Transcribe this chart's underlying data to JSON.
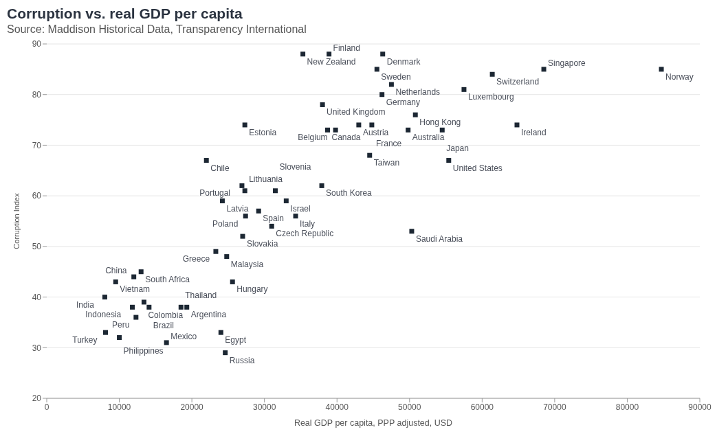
{
  "chart_data": {
    "type": "scatter",
    "title": "Corruption vs. real GDP per capita",
    "subtitle": "Source: Maddison Historical Data, Transparency International",
    "xlabel": "Real GDP per capita, PPP adjusted, USD",
    "ylabel": "Corruption Index",
    "xlim": [
      0,
      90000
    ],
    "xticks": [
      0,
      10000,
      20000,
      30000,
      40000,
      50000,
      60000,
      70000,
      80000,
      90000
    ],
    "ylim": [
      20,
      90
    ],
    "yticks": [
      20,
      30,
      40,
      50,
      60,
      70,
      80,
      90
    ],
    "grid": "y",
    "marker": "square",
    "series": [
      {
        "color": "#1c2733",
        "x": [
          35300,
          38900,
          46300,
          45500,
          47500,
          61400,
          68500,
          84700,
          57500,
          46200,
          38000,
          50800,
          27300,
          38700,
          39800,
          43000,
          44800,
          49800,
          54500,
          64800,
          44500,
          55400,
          22000,
          26900,
          27300,
          31500,
          37900,
          29200,
          24200,
          33000,
          34300,
          27400,
          31000,
          27000,
          50300,
          23300,
          24800,
          25600,
          13000,
          12000,
          9500,
          8000,
          13400,
          14100,
          11800,
          19300,
          18500,
          12300,
          8100,
          10000,
          24000,
          16500,
          24600
        ],
        "values": [
          88,
          88,
          88,
          85,
          82,
          84,
          85,
          85,
          81,
          80,
          78,
          76,
          74,
          73,
          73,
          74,
          74,
          73,
          73,
          74,
          68,
          67,
          67,
          62,
          61,
          61,
          62,
          57,
          59,
          59,
          56,
          56,
          54,
          52,
          53,
          49,
          48,
          43,
          45,
          44,
          43,
          40,
          39,
          38,
          38,
          38,
          38,
          36,
          33,
          32,
          33,
          31,
          29
        ]
      }
    ],
    "annotations": [
      {
        "text": "New Zealand",
        "x": 35300,
        "y": 88
      },
      {
        "text": "Finland",
        "x": 38900,
        "y": 88
      },
      {
        "text": "Denmark",
        "x": 46300,
        "y": 88
      },
      {
        "text": "Sweden",
        "x": 45500,
        "y": 85
      },
      {
        "text": "Netherlands",
        "x": 47500,
        "y": 82
      },
      {
        "text": "Switzerland",
        "x": 61400,
        "y": 84
      },
      {
        "text": "Singapore",
        "x": 68500,
        "y": 85
      },
      {
        "text": "Norway",
        "x": 84700,
        "y": 85
      },
      {
        "text": "Luxembourg",
        "x": 57500,
        "y": 81
      },
      {
        "text": "Germany",
        "x": 46200,
        "y": 80
      },
      {
        "text": "United Kingdom",
        "x": 38000,
        "y": 78
      },
      {
        "text": "Hong Kong",
        "x": 50800,
        "y": 76
      },
      {
        "text": "Estonia",
        "x": 27300,
        "y": 74
      },
      {
        "text": "Canada",
        "x": 38700,
        "y": 73
      },
      {
        "text": "Belgium",
        "x": 39800,
        "y": 73
      },
      {
        "text": "Austria",
        "x": 43000,
        "y": 74
      },
      {
        "text": "France",
        "x": 44800,
        "y": 74
      },
      {
        "text": "Australia",
        "x": 49800,
        "y": 73
      },
      {
        "text": "Japan",
        "x": 54500,
        "y": 73
      },
      {
        "text": "Ireland",
        "x": 64800,
        "y": 74
      },
      {
        "text": "Taiwan",
        "x": 44500,
        "y": 68
      },
      {
        "text": "United States",
        "x": 55400,
        "y": 67
      },
      {
        "text": "Chile",
        "x": 22000,
        "y": 67
      },
      {
        "text": "Portugal",
        "x": 26900,
        "y": 62
      },
      {
        "text": "Lithuania",
        "x": 27300,
        "y": 61
      },
      {
        "text": "Slovenia",
        "x": 31500,
        "y": 61
      },
      {
        "text": "South Korea",
        "x": 37900,
        "y": 62
      },
      {
        "text": "Spain",
        "x": 29200,
        "y": 57
      },
      {
        "text": "Latvia",
        "x": 24200,
        "y": 59
      },
      {
        "text": "Israel",
        "x": 33000,
        "y": 59
      },
      {
        "text": "Italy",
        "x": 34300,
        "y": 56
      },
      {
        "text": "Poland",
        "x": 27400,
        "y": 56
      },
      {
        "text": "Czech Republic",
        "x": 31000,
        "y": 54
      },
      {
        "text": "Slovakia",
        "x": 27000,
        "y": 52
      },
      {
        "text": "Saudi Arabia",
        "x": 50300,
        "y": 53
      },
      {
        "text": "Greece",
        "x": 23300,
        "y": 49
      },
      {
        "text": "Malaysia",
        "x": 24800,
        "y": 48
      },
      {
        "text": "Hungary",
        "x": 25600,
        "y": 43
      },
      {
        "text": "South Africa",
        "x": 13000,
        "y": 45
      },
      {
        "text": "China",
        "x": 12000,
        "y": 44
      },
      {
        "text": "Vietnam",
        "x": 9500,
        "y": 43
      },
      {
        "text": "India",
        "x": 8000,
        "y": 40
      },
      {
        "text": "Colombia",
        "x": 13400,
        "y": 39
      },
      {
        "text": "Brazil",
        "x": 14100,
        "y": 38
      },
      {
        "text": "Indonesia",
        "x": 11800,
        "y": 38
      },
      {
        "text": "Argentina",
        "x": 19300,
        "y": 38
      },
      {
        "text": "Thailand",
        "x": 18500,
        "y": 38
      },
      {
        "text": "Peru",
        "x": 12300,
        "y": 36
      },
      {
        "text": "Turkey",
        "x": 8100,
        "y": 33
      },
      {
        "text": "Philippines",
        "x": 10000,
        "y": 32
      },
      {
        "text": "Egypt",
        "x": 24000,
        "y": 33
      },
      {
        "text": "Mexico",
        "x": 16500,
        "y": 31
      },
      {
        "text": "Russia",
        "x": 24600,
        "y": 29
      }
    ]
  }
}
